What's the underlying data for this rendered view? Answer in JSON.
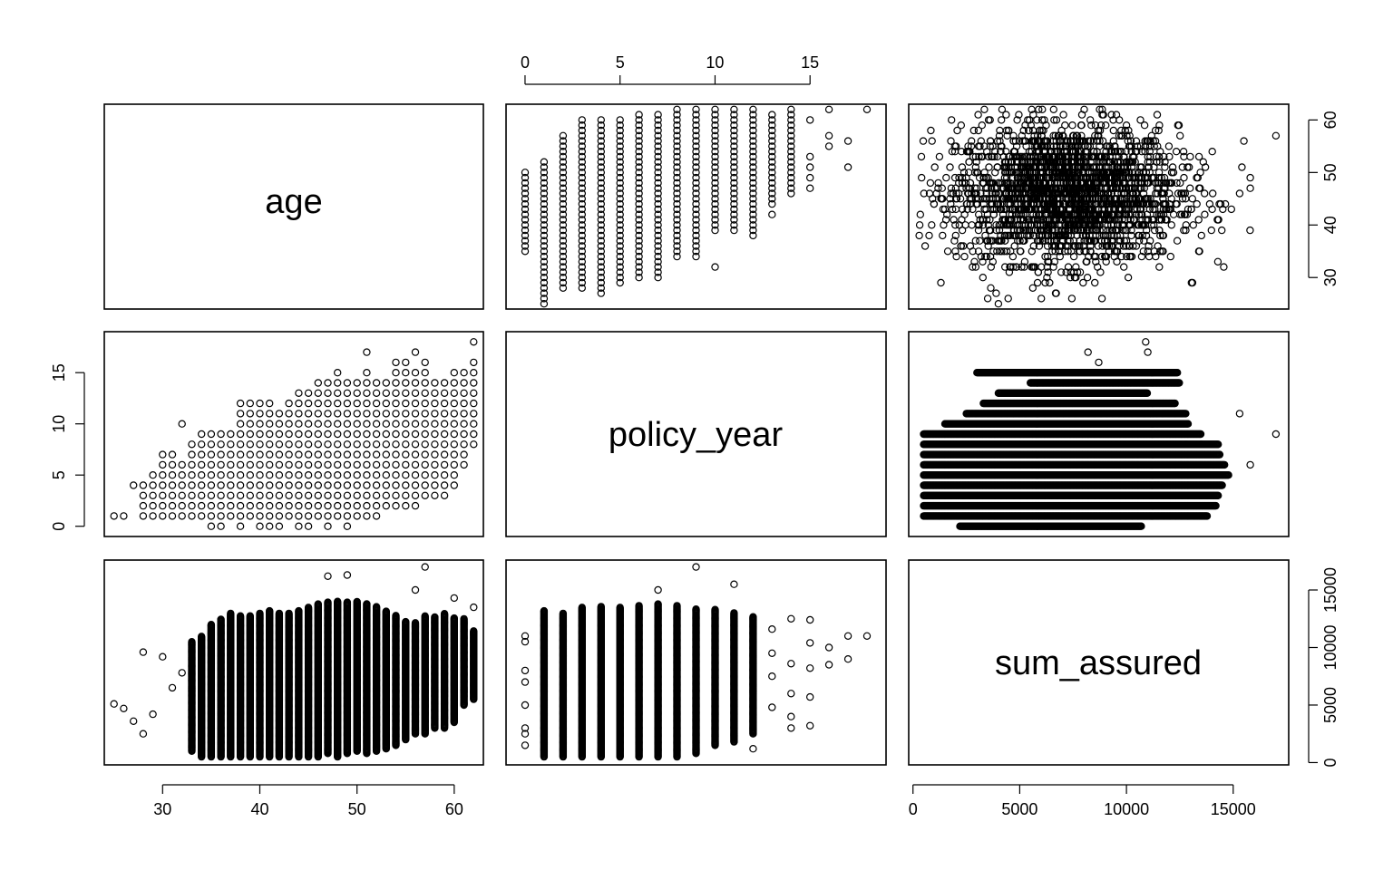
{
  "chart_data": {
    "type": "scatter",
    "subtype": "scatterplot-matrix",
    "variables": [
      "age",
      "policy_year",
      "sum_assured"
    ],
    "axes": {
      "age": {
        "range": [
          24,
          63
        ],
        "ticks": [
          30,
          40,
          50,
          60
        ],
        "tick_labels": [
          "30",
          "40",
          "50",
          "60"
        ]
      },
      "policy_year": {
        "range": [
          -1,
          19
        ],
        "ticks": [
          0,
          5,
          10,
          15
        ],
        "tick_labels": [
          "0",
          "5",
          "10",
          "15"
        ]
      },
      "sum_assured": {
        "range": [
          -200,
          17600
        ],
        "ticks": [
          0,
          5000,
          10000,
          15000
        ],
        "tick_labels": [
          "0",
          "5000",
          "10000",
          "15000"
        ]
      }
    },
    "axis_placement": {
      "top": "policy_year",
      "bottom": [
        "age",
        "sum_assured"
      ],
      "left": "policy_year",
      "right": [
        "age",
        "sum_assured"
      ]
    },
    "panels": [
      {
        "row": 1,
        "col": 2,
        "x": "policy_year",
        "y": "age",
        "columns": [
          {
            "x": 0,
            "y_min": 35,
            "y_max": 50
          },
          {
            "x": 1,
            "y_min": 25,
            "y_max": 52
          },
          {
            "x": 2,
            "y_min": 28,
            "y_max": 57
          },
          {
            "x": 3,
            "y_min": 28,
            "y_max": 60
          },
          {
            "x": 4,
            "y_min": 27,
            "y_max": 60
          },
          {
            "x": 5,
            "y_min": 29,
            "y_max": 60
          },
          {
            "x": 6,
            "y_min": 30,
            "y_max": 61
          },
          {
            "x": 7,
            "y_min": 30,
            "y_max": 61
          },
          {
            "x": 8,
            "y_min": 34,
            "y_max": 62
          },
          {
            "x": 9,
            "y_min": 34,
            "y_max": 62
          },
          {
            "x": 10,
            "y_min": 39,
            "y_max": 62
          },
          {
            "x": 11,
            "y_min": 39,
            "y_max": 62
          },
          {
            "x": 12,
            "y_min": 38,
            "y_max": 62
          },
          {
            "x": 13,
            "y_min": 44,
            "y_max": 61
          },
          {
            "x": 14,
            "y_min": 46,
            "y_max": 62
          }
        ],
        "outliers": [
          [
            10,
            32
          ],
          [
            13,
            42
          ],
          [
            15,
            47
          ],
          [
            15,
            49
          ],
          [
            15,
            51
          ],
          [
            15,
            53
          ],
          [
            15,
            60
          ],
          [
            16,
            55
          ],
          [
            16,
            57
          ],
          [
            16,
            62
          ],
          [
            17,
            51
          ],
          [
            17,
            56
          ],
          [
            18,
            62
          ]
        ]
      },
      {
        "row": 1,
        "col": 3,
        "x": "sum_assured",
        "y": "age",
        "cloud": {
          "x_center": 7200,
          "x_spread": 2600,
          "y_center": 46,
          "y_spread": 6.5
        },
        "outliers": [
          [
            15800,
            47
          ],
          [
            15800,
            49
          ],
          [
            15500,
            56
          ],
          [
            15300,
            46
          ],
          [
            17000,
            57
          ],
          [
            3500,
            26
          ],
          [
            4000,
            25
          ]
        ]
      },
      {
        "row": 2,
        "col": 1,
        "x": "age",
        "y": "policy_year",
        "columns": [
          {
            "x": 27,
            "y_min": 4,
            "y_max": 4
          },
          {
            "x": 28,
            "y_min": 1,
            "y_max": 4
          },
          {
            "x": 29,
            "y_min": 1,
            "y_max": 5
          },
          {
            "x": 30,
            "y_min": 1,
            "y_max": 7
          },
          {
            "x": 31,
            "y_min": 1,
            "y_max": 7
          },
          {
            "x": 32,
            "y_min": 1,
            "y_max": 6
          },
          {
            "x": 33,
            "y_min": 1,
            "y_max": 8
          },
          {
            "x": 34,
            "y_min": 1,
            "y_max": 9
          },
          {
            "x": 35,
            "y_min": 0,
            "y_max": 9
          },
          {
            "x": 36,
            "y_min": 0,
            "y_max": 9
          },
          {
            "x": 37,
            "y_min": 1,
            "y_max": 9
          },
          {
            "x": 38,
            "y_min": 0,
            "y_max": 12
          },
          {
            "x": 39,
            "y_min": 1,
            "y_max": 12
          },
          {
            "x": 40,
            "y_min": 0,
            "y_max": 12
          },
          {
            "x": 41,
            "y_min": 0,
            "y_max": 12
          },
          {
            "x": 42,
            "y_min": 0,
            "y_max": 11
          },
          {
            "x": 43,
            "y_min": 1,
            "y_max": 12
          },
          {
            "x": 44,
            "y_min": 0,
            "y_max": 12
          },
          {
            "x": 45,
            "y_min": 0,
            "y_max": 13
          },
          {
            "x": 46,
            "y_min": 1,
            "y_max": 14
          },
          {
            "x": 47,
            "y_min": 0,
            "y_max": 14
          },
          {
            "x": 48,
            "y_min": 1,
            "y_max": 15
          },
          {
            "x": 49,
            "y_min": 0,
            "y_max": 14
          },
          {
            "x": 50,
            "y_min": 1,
            "y_max": 14
          },
          {
            "x": 51,
            "y_min": 1,
            "y_max": 15
          },
          {
            "x": 52,
            "y_min": 1,
            "y_max": 14
          },
          {
            "x": 53,
            "y_min": 2,
            "y_max": 14
          },
          {
            "x": 54,
            "y_min": 2,
            "y_max": 16
          },
          {
            "x": 55,
            "y_min": 2,
            "y_max": 16
          },
          {
            "x": 56,
            "y_min": 2,
            "y_max": 15
          },
          {
            "x": 57,
            "y_min": 3,
            "y_max": 16
          },
          {
            "x": 58,
            "y_min": 3,
            "y_max": 14
          },
          {
            "x": 59,
            "y_min": 3,
            "y_max": 14
          },
          {
            "x": 60,
            "y_min": 4,
            "y_max": 15
          },
          {
            "x": 61,
            "y_min": 6,
            "y_max": 15
          },
          {
            "x": 62,
            "y_min": 8,
            "y_max": 16
          }
        ],
        "outliers": [
          [
            25,
            1
          ],
          [
            26,
            1
          ],
          [
            32,
            10
          ],
          [
            44,
            13
          ],
          [
            51,
            17
          ],
          [
            56,
            17
          ],
          [
            62,
            18
          ]
        ]
      },
      {
        "row": 2,
        "col": 3,
        "x": "sum_assured",
        "y": "policy_year",
        "rows": [
          {
            "y": 0,
            "x_min": 2200,
            "x_max": 10700
          },
          {
            "y": 1,
            "x_min": 500,
            "x_max": 13800
          },
          {
            "y": 2,
            "x_min": 500,
            "x_max": 14200
          },
          {
            "y": 3,
            "x_min": 500,
            "x_max": 14300
          },
          {
            "y": 4,
            "x_min": 500,
            "x_max": 14500
          },
          {
            "y": 5,
            "x_min": 500,
            "x_max": 14800
          },
          {
            "y": 6,
            "x_min": 500,
            "x_max": 14600
          },
          {
            "y": 7,
            "x_min": 500,
            "x_max": 14400
          },
          {
            "y": 8,
            "x_min": 500,
            "x_max": 14300
          },
          {
            "y": 9,
            "x_min": 500,
            "x_max": 13500
          },
          {
            "y": 10,
            "x_min": 1500,
            "x_max": 12900
          },
          {
            "y": 11,
            "x_min": 2500,
            "x_max": 12800
          },
          {
            "y": 12,
            "x_min": 3300,
            "x_max": 12300
          },
          {
            "y": 13,
            "x_min": 4000,
            "x_max": 11000
          },
          {
            "y": 14,
            "x_min": 5500,
            "x_max": 12500
          },
          {
            "y": 15,
            "x_min": 3000,
            "x_max": 12400
          }
        ],
        "outliers": [
          [
            15300,
            11
          ],
          [
            15800,
            6
          ],
          [
            17000,
            9
          ],
          [
            8700,
            16
          ],
          [
            8200,
            17
          ],
          [
            11000,
            17
          ],
          [
            10900,
            18
          ],
          [
            12800,
            8
          ],
          [
            13500,
            8
          ]
        ]
      },
      {
        "row": 3,
        "col": 1,
        "x": "age",
        "y": "sum_assured",
        "columns": [
          {
            "x": 33,
            "y_min": 1000,
            "y_max": 10500
          },
          {
            "x": 34,
            "y_min": 500,
            "y_max": 11000
          },
          {
            "x": 35,
            "y_min": 500,
            "y_max": 12000
          },
          {
            "x": 36,
            "y_min": 500,
            "y_max": 12500
          },
          {
            "x": 37,
            "y_min": 500,
            "y_max": 13000
          },
          {
            "x": 38,
            "y_min": 500,
            "y_max": 12800
          },
          {
            "x": 39,
            "y_min": 500,
            "y_max": 12800
          },
          {
            "x": 40,
            "y_min": 500,
            "y_max": 13000
          },
          {
            "x": 41,
            "y_min": 500,
            "y_max": 13200
          },
          {
            "x": 42,
            "y_min": 500,
            "y_max": 13000
          },
          {
            "x": 43,
            "y_min": 500,
            "y_max": 13000
          },
          {
            "x": 44,
            "y_min": 500,
            "y_max": 13200
          },
          {
            "x": 45,
            "y_min": 500,
            "y_max": 13500
          },
          {
            "x": 46,
            "y_min": 500,
            "y_max": 13800
          },
          {
            "x": 47,
            "y_min": 800,
            "y_max": 14000
          },
          {
            "x": 48,
            "y_min": 500,
            "y_max": 14000
          },
          {
            "x": 49,
            "y_min": 800,
            "y_max": 14000
          },
          {
            "x": 50,
            "y_min": 1000,
            "y_max": 14000
          },
          {
            "x": 51,
            "y_min": 800,
            "y_max": 13800
          },
          {
            "x": 52,
            "y_min": 1000,
            "y_max": 13600
          },
          {
            "x": 53,
            "y_min": 1200,
            "y_max": 13200
          },
          {
            "x": 54,
            "y_min": 1500,
            "y_max": 12800
          },
          {
            "x": 55,
            "y_min": 2000,
            "y_max": 12300
          },
          {
            "x": 56,
            "y_min": 2500,
            "y_max": 12200
          },
          {
            "x": 57,
            "y_min": 2500,
            "y_max": 12800
          },
          {
            "x": 58,
            "y_min": 3000,
            "y_max": 12700
          },
          {
            "x": 59,
            "y_min": 3000,
            "y_max": 13000
          },
          {
            "x": 60,
            "y_min": 3500,
            "y_max": 12600
          },
          {
            "x": 61,
            "y_min": 5000,
            "y_max": 12500
          },
          {
            "x": 62,
            "y_min": 5500,
            "y_max": 11500
          }
        ],
        "outliers": [
          [
            25,
            5100
          ],
          [
            26,
            4700
          ],
          [
            27,
            3600
          ],
          [
            28,
            9600
          ],
          [
            28,
            2500
          ],
          [
            29,
            4200
          ],
          [
            30,
            9200
          ],
          [
            31,
            6500
          ],
          [
            32,
            7800
          ],
          [
            47,
            16200
          ],
          [
            49,
            16300
          ],
          [
            56,
            15000
          ],
          [
            57,
            17000
          ],
          [
            60,
            14300
          ],
          [
            62,
            13500
          ]
        ]
      },
      {
        "row": 3,
        "col": 2,
        "x": "policy_year",
        "y": "sum_assured",
        "columns": [
          {
            "x": 1,
            "y_min": 500,
            "y_max": 13200
          },
          {
            "x": 2,
            "y_min": 500,
            "y_max": 13000
          },
          {
            "x": 3,
            "y_min": 500,
            "y_max": 13500
          },
          {
            "x": 4,
            "y_min": 500,
            "y_max": 13600
          },
          {
            "x": 5,
            "y_min": 500,
            "y_max": 13500
          },
          {
            "x": 6,
            "y_min": 500,
            "y_max": 13700
          },
          {
            "x": 7,
            "y_min": 500,
            "y_max": 13800
          },
          {
            "x": 8,
            "y_min": 500,
            "y_max": 13700
          },
          {
            "x": 9,
            "y_min": 800,
            "y_max": 13400
          },
          {
            "x": 10,
            "y_min": 1500,
            "y_max": 13300
          },
          {
            "x": 11,
            "y_min": 1800,
            "y_max": 13000
          },
          {
            "x": 12,
            "y_min": 2500,
            "y_max": 12700
          }
        ],
        "outliers": [
          [
            0,
            1500
          ],
          [
            0,
            2500
          ],
          [
            0,
            3000
          ],
          [
            0,
            5000
          ],
          [
            0,
            7000
          ],
          [
            0,
            8000
          ],
          [
            0,
            10500
          ],
          [
            0,
            11000
          ],
          [
            7,
            15000
          ],
          [
            9,
            17000
          ],
          [
            11,
            15500
          ],
          [
            12,
            1200
          ],
          [
            13,
            4800
          ],
          [
            13,
            7500
          ],
          [
            13,
            9500
          ],
          [
            13,
            11600
          ],
          [
            14,
            3000
          ],
          [
            14,
            4000
          ],
          [
            14,
            6000
          ],
          [
            14,
            8600
          ],
          [
            14,
            12500
          ],
          [
            15,
            3200
          ],
          [
            15,
            5700
          ],
          [
            15,
            8200
          ],
          [
            15,
            10400
          ],
          [
            15,
            12400
          ],
          [
            16,
            8500
          ],
          [
            16,
            10000
          ],
          [
            17,
            9000
          ],
          [
            17,
            11000
          ],
          [
            18,
            11000
          ]
        ]
      }
    ]
  }
}
